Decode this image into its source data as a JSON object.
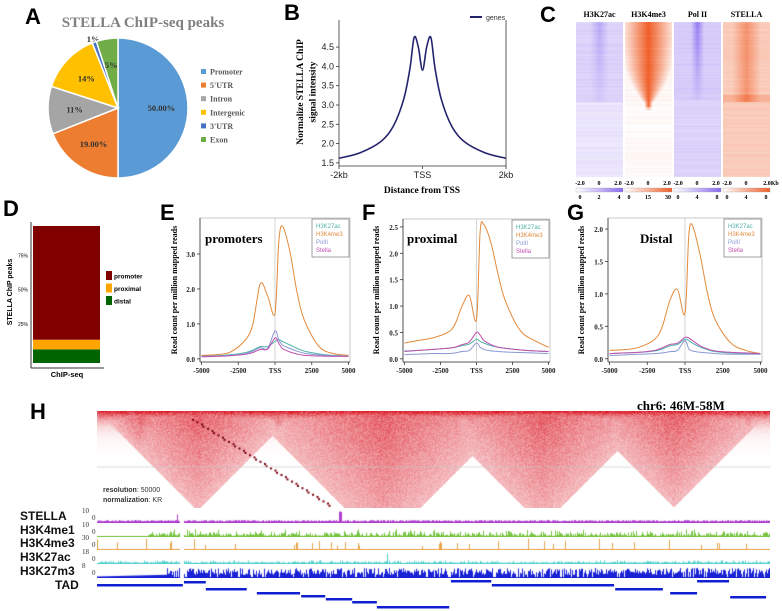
{
  "panels": {
    "a": "A",
    "b": "B",
    "c": "C",
    "d": "D",
    "e": "E",
    "f": "F",
    "g": "G",
    "h": "H"
  },
  "chart_data": [
    {
      "id": "A",
      "type": "pie",
      "title": "STELLA ChIP-seq peaks",
      "categories": [
        "Promoter",
        "5'UTR",
        "Intron",
        "Intergenic",
        "3'UTR",
        "Exon"
      ],
      "values": [
        50,
        19,
        11,
        14,
        1,
        5
      ],
      "data_labels": [
        "50.00%",
        "19.00%",
        "11%",
        "14%",
        "1%",
        "5%"
      ],
      "colors": [
        "#5b9bd5",
        "#ed7d31",
        "#a5a5a5",
        "#ffc000",
        "#4472c4",
        "#70ad47"
      ],
      "legend": "right"
    },
    {
      "id": "B",
      "type": "line",
      "ylabel_lines": [
        "Normalize STELLA ChIP",
        "signal intensity"
      ],
      "xlabel": "Distance from TSS",
      "x": [
        -2000,
        -1500,
        -1000,
        -700,
        -450,
        -300,
        -200,
        -100,
        0,
        100,
        200,
        300,
        450,
        700,
        1000,
        1500,
        2000
      ],
      "series": [
        {
          "name": "genes",
          "color": "#24246e",
          "values": [
            1.62,
            1.76,
            2.05,
            2.45,
            3.15,
            3.95,
            4.75,
            4.5,
            3.9,
            4.5,
            4.75,
            3.95,
            3.15,
            2.45,
            2.05,
            1.76,
            1.62
          ]
        }
      ],
      "xlim": [
        -2000,
        2000
      ],
      "ylim": [
        1.42,
        5.33
      ],
      "xticks": [
        -2000,
        0,
        2000
      ],
      "xticklabels": [
        "-2kb",
        "TSS",
        "2kb"
      ],
      "yticks": [
        1.5,
        2.0,
        2.5,
        3.0,
        3.5,
        4.0,
        4.5
      ],
      "yticklabels": [
        "1.5",
        "2.0",
        "2.5",
        "3.0",
        "3.5",
        "4.0",
        "4.5"
      ],
      "legend": "top-right"
    },
    {
      "id": "C",
      "type": "heatmap",
      "columns": [
        {
          "name": "H3K27ac",
          "color": "#8a6cf0",
          "xticklabels": [
            "-2.0",
            "0",
            "2.0"
          ],
          "colorbar": [
            "0",
            "2",
            "4"
          ]
        },
        {
          "name": "H3K4me3",
          "color": "#f0602a",
          "xticklabels": [
            "-2.0",
            "0",
            "2.0"
          ],
          "colorbar": [
            "0",
            "15",
            "30"
          ]
        },
        {
          "name": "Pol II",
          "color": "#8a6cf0",
          "xticklabels": [
            "-2.0",
            "0",
            "2.0"
          ],
          "colorbar": [
            "0",
            "4",
            "8"
          ]
        },
        {
          "name": "STELLA",
          "color": "#f0602a",
          "xticklabels": [
            "-2.0",
            "0",
            "2.0Kb"
          ],
          "colorbar": [
            "0",
            "4",
            "8"
          ]
        }
      ]
    },
    {
      "id": "D",
      "type": "bar",
      "stacked": true,
      "ylabel": "STELLA ChIP peaks",
      "categories": [
        "ChIP-seq"
      ],
      "series": [
        {
          "name": "promoter",
          "color": "#800000",
          "values": [
            83
          ]
        },
        {
          "name": "proximal",
          "color": "#ffa500",
          "values": [
            7
          ]
        },
        {
          "name": "distal",
          "color": "#006400",
          "values": [
            10
          ]
        }
      ],
      "ylim": [
        0,
        100
      ],
      "yticks": [
        25,
        50,
        75
      ],
      "yticklabels": [
        "25%",
        "50%",
        "75%"
      ],
      "legend": "right"
    },
    {
      "id": "E",
      "type": "line",
      "annotation": "promoters",
      "ylabel": "Read count per million mapped reads",
      "x": [
        -5000,
        -4000,
        -3000,
        -2000,
        -1500,
        -1000,
        -500,
        0,
        250,
        500,
        1000,
        1500,
        2000,
        3000,
        4000,
        5000
      ],
      "series": [
        {
          "name": "H3K27ac",
          "color": "#4fb3a9",
          "values": [
            0.08,
            0.09,
            0.12,
            0.18,
            0.25,
            0.35,
            0.35,
            0.5,
            0.55,
            0.5,
            0.4,
            0.3,
            0.22,
            0.14,
            0.1,
            0.09
          ]
        },
        {
          "name": "H3K4me3",
          "color": "#e38a3c",
          "values": [
            0.1,
            0.12,
            0.2,
            0.55,
            1.0,
            2.15,
            1.8,
            1.3,
            3.3,
            3.8,
            3.1,
            1.9,
            1.1,
            0.35,
            0.15,
            0.1
          ]
        },
        {
          "name": "PolII",
          "color": "#8c98d4",
          "values": [
            0.07,
            0.08,
            0.1,
            0.15,
            0.22,
            0.32,
            0.3,
            0.8,
            0.55,
            0.4,
            0.3,
            0.22,
            0.16,
            0.11,
            0.09,
            0.08
          ]
        },
        {
          "name": "Stella",
          "color": "#c04fb0",
          "values": [
            0.06,
            0.07,
            0.09,
            0.13,
            0.18,
            0.27,
            0.28,
            0.6,
            0.45,
            0.3,
            0.2,
            0.14,
            0.1,
            0.08,
            0.07,
            0.07
          ]
        }
      ],
      "xlim": [
        -5100,
        5100
      ],
      "ylim": [
        -0.09,
        4.03
      ],
      "xticks": [
        -5000,
        -2500,
        0,
        2500,
        5000
      ],
      "xticklabels": [
        "-5000",
        "-2500",
        "TSS",
        "2500",
        "5000"
      ],
      "yticks": [
        0,
        1,
        2,
        3
      ],
      "yticklabels": [
        "0.0",
        "1.0",
        "2.0",
        "3.0"
      ],
      "legend": "top-right"
    },
    {
      "id": "F",
      "type": "line",
      "annotation": "proximal",
      "ylabel": "Read count per million mapped reads",
      "x": [
        -5000,
        -4000,
        -3000,
        -2000,
        -1500,
        -1000,
        -500,
        0,
        250,
        500,
        1000,
        1500,
        2000,
        3000,
        4000,
        5000
      ],
      "series": [
        {
          "name": "H3K27ac",
          "color": "#4fb3a9",
          "values": [
            0.15,
            0.16,
            0.18,
            0.2,
            0.22,
            0.25,
            0.28,
            0.37,
            0.33,
            0.3,
            0.25,
            0.22,
            0.2,
            0.17,
            0.15,
            0.14
          ]
        },
        {
          "name": "H3K4me3",
          "color": "#e38a3c",
          "values": [
            0.3,
            0.35,
            0.4,
            0.5,
            0.65,
            1.0,
            1.2,
            0.75,
            2.4,
            2.55,
            2.2,
            1.6,
            1.1,
            0.55,
            0.35,
            0.22
          ]
        },
        {
          "name": "PolII",
          "color": "#8c98d4",
          "values": [
            0.08,
            0.09,
            0.1,
            0.1,
            0.11,
            0.14,
            0.16,
            0.3,
            0.22,
            0.18,
            0.15,
            0.14,
            0.13,
            0.12,
            0.11,
            0.1
          ]
        },
        {
          "name": "Stella",
          "color": "#c04fb0",
          "values": [
            0.14,
            0.16,
            0.18,
            0.2,
            0.22,
            0.27,
            0.32,
            0.5,
            0.45,
            0.35,
            0.27,
            0.22,
            0.2,
            0.17,
            0.15,
            0.14
          ]
        }
      ],
      "xlim": [
        -5100,
        5100
      ],
      "ylim": [
        -0.06,
        2.65
      ],
      "xticks": [
        -5000,
        -2500,
        0,
        2500,
        5000
      ],
      "xticklabels": [
        "-5000",
        "-2500",
        "TSS",
        "2500",
        "5000"
      ],
      "yticks": [
        0,
        0.5,
        1,
        1.5,
        2,
        2.5
      ],
      "yticklabels": [
        "0.0",
        "0.5",
        "1.0",
        "1.5",
        "2.0",
        "2.5"
      ],
      "legend": "top-right"
    },
    {
      "id": "G",
      "type": "line",
      "annotation": "Distal",
      "ylabel": "Read count per million mapped reads",
      "x": [
        -5000,
        -4000,
        -3000,
        -2000,
        -1500,
        -1000,
        -500,
        0,
        250,
        500,
        1000,
        1500,
        2000,
        3000,
        4000,
        5000
      ],
      "series": [
        {
          "name": "H3K27ac",
          "color": "#4fb3a9",
          "values": [
            0.08,
            0.09,
            0.1,
            0.12,
            0.15,
            0.2,
            0.22,
            0.3,
            0.28,
            0.24,
            0.18,
            0.14,
            0.11,
            0.09,
            0.08,
            0.08
          ]
        },
        {
          "name": "H3K4me3",
          "color": "#e38a3c",
          "values": [
            0.13,
            0.14,
            0.18,
            0.3,
            0.5,
            0.9,
            1.07,
            0.7,
            1.9,
            2.05,
            1.6,
            1.0,
            0.6,
            0.25,
            0.13,
            0.08
          ]
        },
        {
          "name": "PolII",
          "color": "#8c98d4",
          "values": [
            0.05,
            0.06,
            0.07,
            0.08,
            0.09,
            0.11,
            0.13,
            0.28,
            0.15,
            0.12,
            0.1,
            0.09,
            0.08,
            0.07,
            0.07,
            0.07
          ]
        },
        {
          "name": "Stella",
          "color": "#c04fb0",
          "values": [
            0.08,
            0.09,
            0.1,
            0.13,
            0.17,
            0.22,
            0.24,
            0.33,
            0.32,
            0.28,
            0.2,
            0.15,
            0.12,
            0.1,
            0.09,
            0.08
          ]
        }
      ],
      "xlim": [
        -5100,
        5100
      ],
      "ylim": [
        -0.05,
        2.17
      ],
      "xticks": [
        -5000,
        -2500,
        0,
        2500,
        5000
      ],
      "xticklabels": [
        "-5000",
        "-2500",
        "TSS",
        "2500",
        "5000"
      ],
      "yticks": [
        0,
        0.5,
        1,
        1.5,
        2
      ],
      "yticklabels": [
        "0.0",
        "0.5",
        "1.0",
        "1.5",
        "2.0"
      ],
      "legend": "top-right"
    }
  ],
  "hic": {
    "region": "chr6: 46M-58M",
    "range_mb": [
      46,
      58
    ],
    "resolution_label": "resolution",
    "resolution_value": "50000",
    "normalization_label": "normalization",
    "normalization_value": "KR",
    "heat_color": "#dc1e2a",
    "tracks": [
      {
        "name": "STELLA",
        "max": "10",
        "min": "0",
        "color": "#b040d0"
      },
      {
        "name": "H3K4me1",
        "max": "10",
        "min": "0",
        "color": "#76c442"
      },
      {
        "name": "H3K4me3",
        "max": "30",
        "min": "0",
        "color": "#e8a448"
      },
      {
        "name": "H3K27ac",
        "max": "18",
        "min": "0",
        "color": "#52d0cc"
      },
      {
        "name": "H3K27m3",
        "max": "8",
        "min": "0",
        "color": "#1a22d6"
      }
    ],
    "tad_label": "TAD",
    "tad_color": "#1020d0",
    "tads_mb": [
      [
        46.0,
        47.53
      ],
      [
        47.55,
        47.94
      ],
      [
        47.94,
        48.67
      ],
      [
        48.85,
        49.62
      ],
      [
        49.64,
        50.07
      ],
      [
        50.08,
        50.55
      ],
      [
        50.55,
        50.99
      ],
      [
        50.99,
        52.28
      ],
      [
        52.31,
        53.03
      ],
      [
        53.04,
        55.22
      ],
      [
        55.24,
        56.09
      ],
      [
        56.22,
        56.7
      ],
      [
        56.7,
        57.27
      ],
      [
        57.29,
        57.93
      ]
    ]
  }
}
